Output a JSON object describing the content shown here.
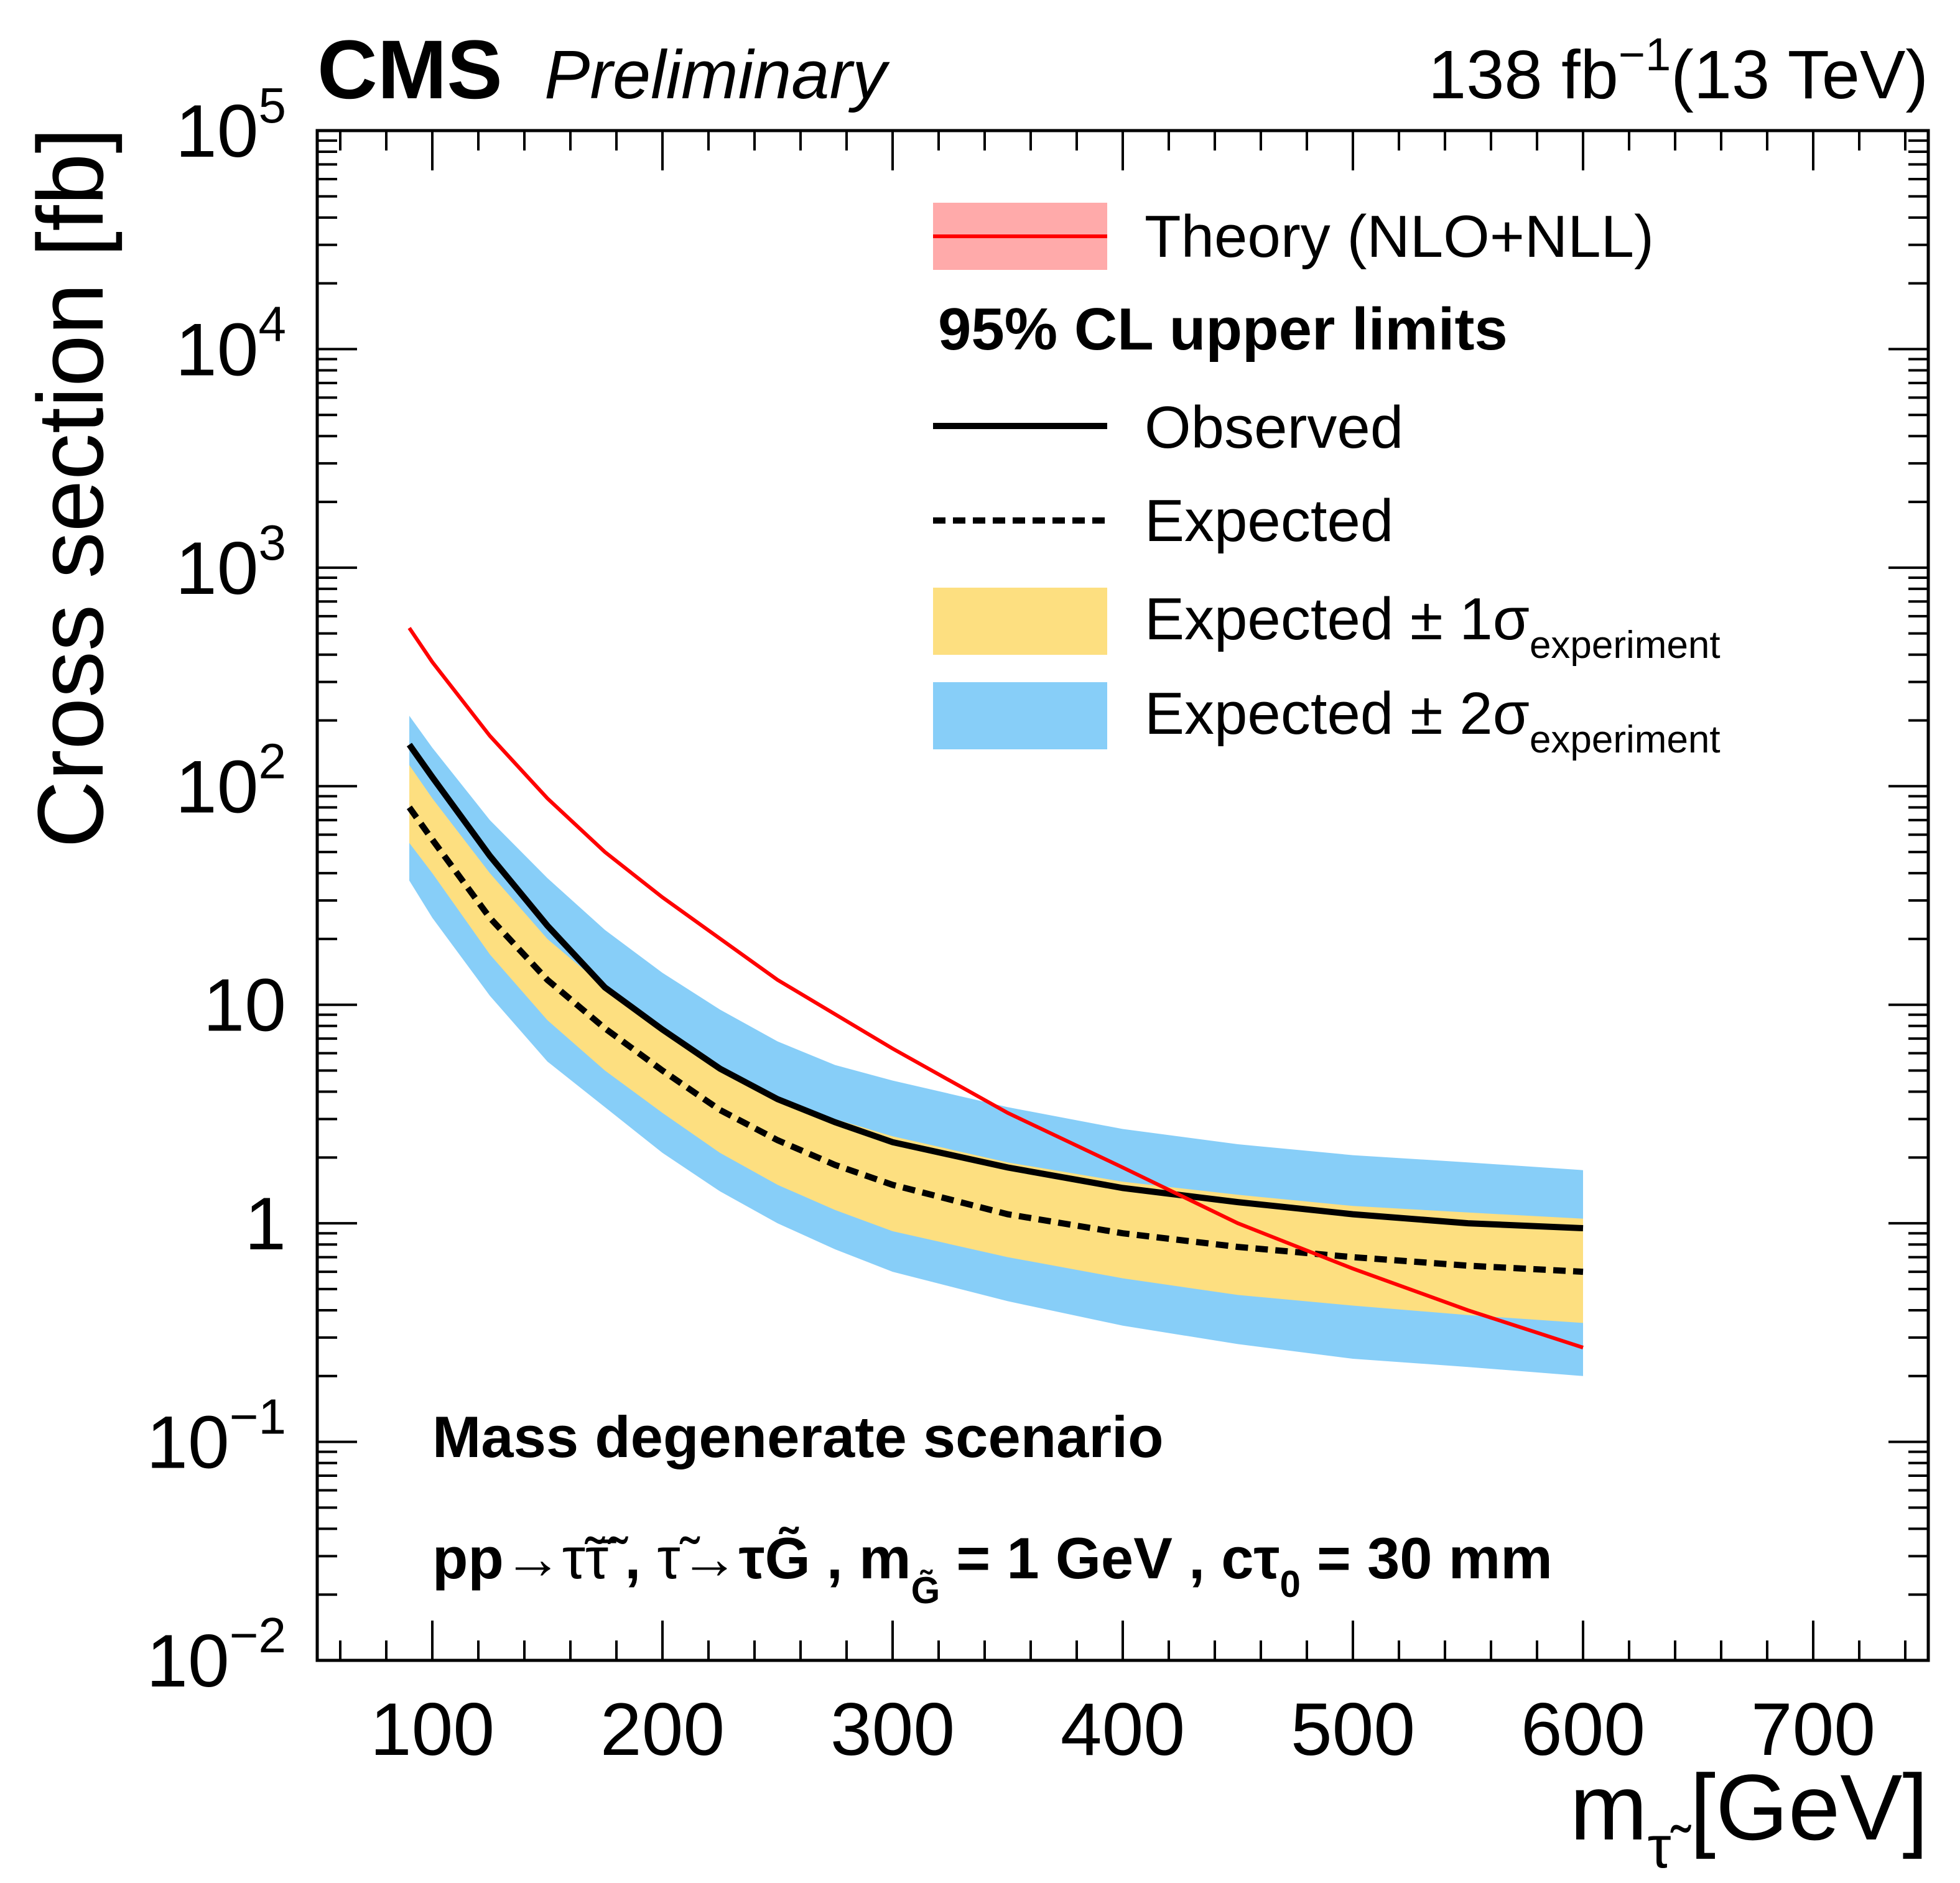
{
  "header": {
    "experiment": "CMS",
    "status": "Preliminary",
    "lumi_value": "138 fb",
    "lumi_exponent": "−1",
    "energy": "(13 TeV)"
  },
  "chart_data": {
    "type": "line",
    "yscale": "log",
    "xlabel": "m",
    "xlabel_subscript": "τ̃",
    "xlabel_unit": "[GeV]",
    "ylabel": "Cross section [fb]",
    "xlim": [
      50,
      750
    ],
    "ylim": [
      0.01,
      100000
    ],
    "x_ticks": [
      {
        "value": 100,
        "label": "100"
      },
      {
        "value": 200,
        "label": "200"
      },
      {
        "value": 300,
        "label": "300"
      },
      {
        "value": 400,
        "label": "400"
      },
      {
        "value": 500,
        "label": "500"
      },
      {
        "value": 600,
        "label": "600"
      },
      {
        "value": 700,
        "label": "700"
      }
    ],
    "y_ticks": [
      {
        "value": 100000,
        "base": "10",
        "exp": "5"
      },
      {
        "value": 10000,
        "base": "10",
        "exp": "4"
      },
      {
        "value": 1000,
        "base": "10",
        "exp": "3"
      },
      {
        "value": 100,
        "base": "10",
        "exp": "2"
      },
      {
        "value": 10,
        "base": "10",
        "exp": ""
      },
      {
        "value": 1,
        "base": "1",
        "exp": ""
      },
      {
        "value": 0.1,
        "base": "10",
        "exp": "−1"
      },
      {
        "value": 0.01,
        "base": "10",
        "exp": "−2"
      }
    ],
    "mass_points": [
      90,
      100,
      125,
      150,
      175,
      200,
      225,
      250,
      275,
      300,
      350,
      400,
      450,
      500,
      550,
      600
    ],
    "series": [
      {
        "name": "Theory (NLO+NLL)",
        "color": "#ff0000",
        "x": [
          90,
          100,
          125,
          150,
          175,
          200,
          250,
          300,
          350,
          400,
          450,
          500,
          550,
          600
        ],
        "values": [
          530,
          370,
          170,
          88,
          50,
          31,
          13,
          6.3,
          3.2,
          1.8,
          1.0,
          0.62,
          0.4,
          0.27
        ]
      },
      {
        "name": "Observed",
        "color": "#000000",
        "values": [
          155,
          110,
          48,
          23,
          12,
          7.7,
          5.1,
          3.7,
          2.9,
          2.35,
          1.8,
          1.45,
          1.25,
          1.1,
          1.0,
          0.95
        ]
      },
      {
        "name": "Expected",
        "color": "#000000",
        "values": [
          80,
          57,
          25,
          13,
          7.8,
          5.0,
          3.3,
          2.4,
          1.85,
          1.5,
          1.1,
          0.9,
          0.78,
          0.7,
          0.64,
          0.6
        ]
      },
      {
        "name": "Expected ± 1σ experiment",
        "color": "#fddf80",
        "lower": [
          55,
          40,
          17,
          8.5,
          5.0,
          3.2,
          2.1,
          1.5,
          1.15,
          0.92,
          0.7,
          0.56,
          0.47,
          0.42,
          0.38,
          0.35
        ],
        "upper": [
          125,
          88,
          40,
          20,
          12,
          7.7,
          5.2,
          3.8,
          3.0,
          2.5,
          1.9,
          1.55,
          1.35,
          1.2,
          1.12,
          1.05
        ]
      },
      {
        "name": "Expected ± 2σ experiment",
        "color": "#87cef8",
        "lower": [
          37,
          25,
          11,
          5.5,
          3.4,
          2.1,
          1.4,
          1.0,
          0.76,
          0.6,
          0.44,
          0.34,
          0.28,
          0.24,
          0.22,
          0.2
        ],
        "upper": [
          210,
          150,
          70,
          38,
          22,
          14,
          9.5,
          6.8,
          5.3,
          4.5,
          3.4,
          2.7,
          2.3,
          2.05,
          1.9,
          1.75
        ]
      }
    ],
    "legend": {
      "position": "top-right",
      "theory": "Theory (NLO+NLL)",
      "header": "95% CL upper limits",
      "observed": "Observed",
      "expected": "Expected",
      "band1_text": "Expected ± 1σ",
      "band2_text": "Expected ± 2σ",
      "band_subscript": "experiment"
    },
    "annotations": {
      "scenario": "Mass degenerate scenario",
      "process_pp": "pp→",
      "process_pair": "τ̃τ̃̄",
      "process_sep1": " , ",
      "process_decay_from": "τ̃",
      "process_decay": "→τ",
      "process_gravitino": "G̃",
      "process_sep2": " , m",
      "process_mass_sub": "G̃",
      "process_mass_eq": " = 1 GeV , cτ",
      "process_ctau_sub": "0",
      "process_ctau_eq": " = 30 mm"
    }
  }
}
